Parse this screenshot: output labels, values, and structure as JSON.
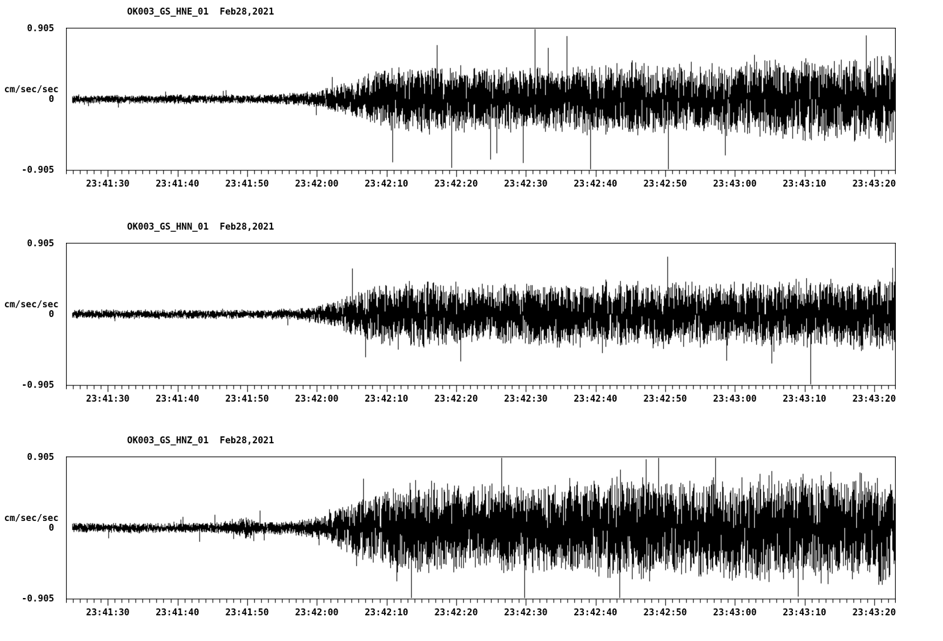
{
  "colors": {
    "trace": "#000000",
    "axis": "#000000",
    "background": "#ffffff"
  },
  "chart_data": [
    {
      "type": "line",
      "kind": "seismogram",
      "channel": "HNE",
      "title": "OK003_GS_HNE_01",
      "date": "Feb28,2021",
      "ylabel": "cm/sec/sec",
      "y_ticks": [
        "0.905",
        "0",
        "-0.905"
      ],
      "ylim": [
        -0.905,
        0.905
      ],
      "x_start_s": 0,
      "x_end_s": 119,
      "x_major_ticks_s": [
        6,
        16,
        26,
        36,
        46,
        56,
        66,
        76,
        86,
        96,
        106,
        116
      ],
      "x_tick_labels": [
        "23:41:30",
        "23:41:40",
        "23:41:50",
        "23:42:00",
        "23:42:10",
        "23:42:20",
        "23:42:30",
        "23:42:40",
        "23:42:50",
        "23:43:00",
        "23:43:10",
        "23:43:20"
      ],
      "envelope": {
        "t": [
          0,
          28,
          33,
          37,
          41,
          45,
          50,
          58,
          66,
          74,
          82,
          90,
          98,
          106,
          112,
          119
        ],
        "a": [
          0.045,
          0.045,
          0.06,
          0.1,
          0.18,
          0.28,
          0.34,
          0.32,
          0.3,
          0.33,
          0.36,
          0.32,
          0.36,
          0.4,
          0.38,
          0.44
        ]
      },
      "spike_prob": 0.025,
      "spike_gain": 2.1,
      "seed": 101
    },
    {
      "type": "line",
      "kind": "seismogram",
      "channel": "HNN",
      "title": "OK003_GS_HNN_01",
      "date": "Feb28,2021",
      "ylabel": "cm/sec/sec",
      "y_ticks": [
        "0.905",
        "0",
        "-0.905"
      ],
      "ylim": [
        -0.905,
        0.905
      ],
      "x_start_s": 0,
      "x_end_s": 119,
      "x_major_ticks_s": [
        6,
        16,
        26,
        36,
        46,
        56,
        66,
        76,
        86,
        96,
        106,
        116
      ],
      "x_tick_labels": [
        "23:41:30",
        "23:41:40",
        "23:41:50",
        "23:42:00",
        "23:42:10",
        "23:42:20",
        "23:42:30",
        "23:42:40",
        "23:42:50",
        "23:43:00",
        "23:43:10",
        "23:43:20"
      ],
      "envelope": {
        "t": [
          0,
          28,
          33,
          37,
          41,
          45,
          50,
          58,
          66,
          74,
          82,
          90,
          98,
          106,
          112,
          119
        ],
        "a": [
          0.045,
          0.045,
          0.06,
          0.1,
          0.2,
          0.29,
          0.33,
          0.3,
          0.31,
          0.33,
          0.31,
          0.33,
          0.3,
          0.34,
          0.33,
          0.36
        ]
      },
      "spike_prob": 0.025,
      "spike_gain": 2.0,
      "seed": 202
    },
    {
      "type": "line",
      "kind": "seismogram",
      "channel": "HNZ",
      "title": "OK003_GS_HNZ_01",
      "date": "Feb28,2021",
      "ylabel": "cm/sec/sec",
      "y_ticks": [
        "0.905",
        "0",
        "-0.905"
      ],
      "ylim": [
        -0.905,
        0.905
      ],
      "x_start_s": 0,
      "x_end_s": 119,
      "x_major_ticks_s": [
        6,
        16,
        26,
        36,
        46,
        56,
        66,
        76,
        86,
        96,
        106,
        116
      ],
      "x_tick_labels": [
        "23:41:30",
        "23:41:40",
        "23:41:50",
        "23:42:00",
        "23:42:10",
        "23:42:20",
        "23:42:30",
        "23:42:40",
        "23:42:50",
        "23:43:00",
        "23:43:10",
        "23:43:20"
      ],
      "envelope": {
        "t": [
          0,
          20,
          24,
          26,
          28,
          33,
          37,
          41,
          45,
          50,
          58,
          66,
          74,
          82,
          90,
          98,
          106,
          112,
          119
        ],
        "a": [
          0.05,
          0.05,
          0.07,
          0.12,
          0.06,
          0.07,
          0.12,
          0.25,
          0.38,
          0.45,
          0.42,
          0.44,
          0.48,
          0.5,
          0.48,
          0.52,
          0.55,
          0.52,
          0.55
        ]
      },
      "spike_prob": 0.03,
      "spike_gain": 2.3,
      "seed": 303
    }
  ]
}
